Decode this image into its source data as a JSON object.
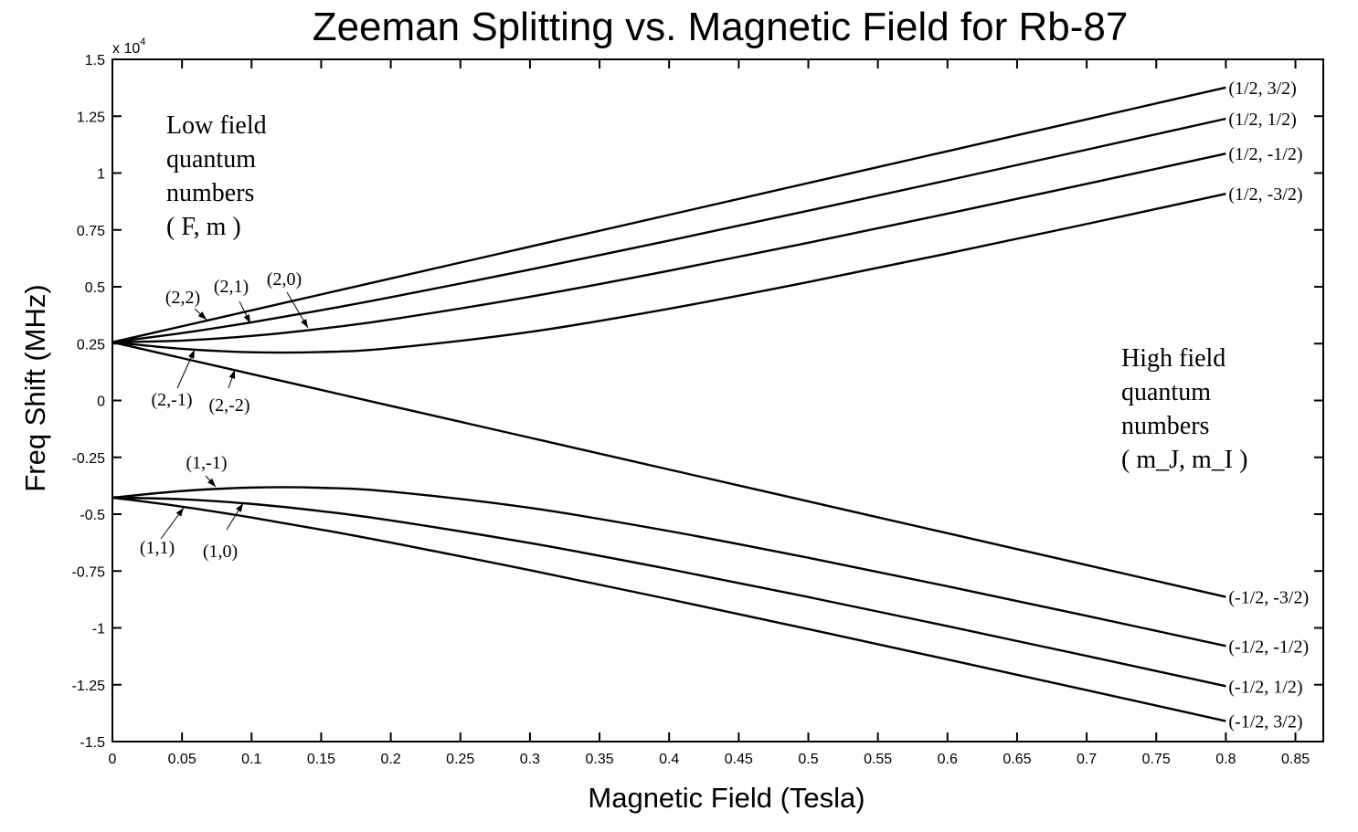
{
  "chart_data": {
    "type": "line",
    "title": "Zeeman Splitting vs. Magnetic Field for Rb-87",
    "xlabel": "Magnetic Field (Tesla)",
    "ylabel": "Freq Shift (MHz)",
    "y_multiplier_label": "x 10",
    "y_multiplier_exponent": "4",
    "xlim": [
      0,
      0.87
    ],
    "ylim": [
      -15000,
      15000
    ],
    "grid": false,
    "legend": "none",
    "line_color": "#000000",
    "x_ticks": [
      "0",
      "0.05",
      "0.1",
      "0.15",
      "0.2",
      "0.25",
      "0.3",
      "0.35",
      "0.4",
      "0.45",
      "0.5",
      "0.55",
      "0.6",
      "0.65",
      "0.7",
      "0.75",
      "0.8",
      "0.85"
    ],
    "y_ticks": [
      "1.5",
      "1.25",
      "1",
      "0.75",
      "0.5",
      "0.25",
      "0",
      "-0.25",
      "-0.5",
      "-0.75",
      "-1",
      "-1.25",
      "-1.5"
    ],
    "x": [
      0,
      0.05,
      0.1,
      0.15,
      0.2,
      0.3,
      0.4,
      0.5,
      0.6,
      0.7,
      0.8
    ],
    "series": [
      {
        "low_field": "(2,2)",
        "high_field": "(1/2, 3/2)",
        "values": [
          2563,
          3263,
          3963,
          4663,
          5363,
          6763,
          8163,
          9563,
          10963,
          12363,
          13763
        ]
      },
      {
        "low_field": "(2,1)",
        "high_field": "(1/2, 1/2)",
        "values": [
          2563,
          2962,
          3438,
          3969,
          4539,
          5754,
          7031,
          8344,
          9679,
          11029,
          12390
        ]
      },
      {
        "low_field": "(2,0)",
        "high_field": "(1/2, -1/2)",
        "values": [
          2563,
          2634,
          2839,
          3157,
          3564,
          4560,
          5706,
          6935,
          8214,
          9524,
          10856
        ]
      },
      {
        "low_field": "(2,-1)",
        "high_field": "(1/2, -3/2)",
        "values": [
          2563,
          2272,
          2121,
          2131,
          2300,
          3014,
          4034,
          5208,
          6462,
          7761,
          9088
        ]
      },
      {
        "low_field": "(2,-2)",
        "high_field": "(-1/2, -3/2)",
        "values": [
          2563,
          1863,
          1163,
          463,
          -237,
          -1637,
          -3037,
          -4437,
          -5837,
          -7237,
          -8637
        ]
      },
      {
        "low_field": "(1,-1)",
        "high_field": "(-1/2, -1/2)",
        "values": [
          -4272,
          -3981,
          -3830,
          -3840,
          -4009,
          -4723,
          -5743,
          -6917,
          -8171,
          -9470,
          -10797
        ]
      },
      {
        "low_field": "(1,0)",
        "high_field": "(-1/2, 1/2)",
        "values": [
          -4272,
          -4343,
          -4548,
          -4866,
          -5273,
          -6269,
          -7415,
          -8644,
          -9923,
          -11233,
          -12564
        ]
      },
      {
        "low_field": "(1,1)",
        "high_field": "(-1/2, 3/2)",
        "values": [
          -4272,
          -4670,
          -5147,
          -5678,
          -6248,
          -7463,
          -8740,
          -10052,
          -11388,
          -12738,
          -14098
        ]
      }
    ],
    "annotations": {
      "low_field_heading": [
        "Low field",
        "quantum",
        "numbers",
        "( F, m )"
      ],
      "high_field_heading": [
        "High field",
        "quantum",
        "numbers",
        "( m_J, m_I )"
      ]
    }
  }
}
